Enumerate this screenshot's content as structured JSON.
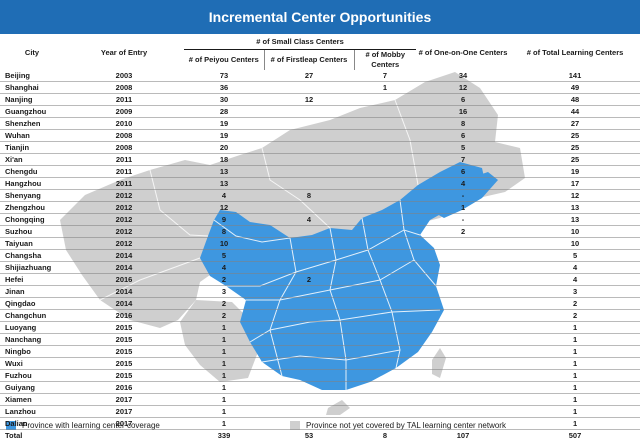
{
  "title": "Incremental Center Opportunities",
  "columns": {
    "city": "City",
    "year": "Year of Entry",
    "small_class_group": "# of Small Class Centers",
    "peiyou": "# of Peiyou Centers",
    "firstleap": "# of Firstleap Centers",
    "mobby": "# of Mobby Centers",
    "one_on_one": "# of One-on-One Centers",
    "total": "# of Total Learning Centers"
  },
  "colors": {
    "header": "#1f6db5",
    "covered": "#3e97e0",
    "not_covered": "#cfcfcf"
  },
  "chart_data": {
    "type": "table",
    "title": "Incremental Center Opportunities",
    "rows": [
      {
        "city": "Beijing",
        "year": "2003",
        "peiyou": "73",
        "firstleap": "27",
        "mobby": "7",
        "one_on_one": "34",
        "total": "141"
      },
      {
        "city": "Shanghai",
        "year": "2008",
        "peiyou": "36",
        "firstleap": "",
        "mobby": "1",
        "one_on_one": "12",
        "total": "49"
      },
      {
        "city": "Nanjing",
        "year": "2011",
        "peiyou": "30",
        "firstleap": "12",
        "mobby": "",
        "one_on_one": "6",
        "total": "48"
      },
      {
        "city": "Guangzhou",
        "year": "2009",
        "peiyou": "28",
        "firstleap": "",
        "mobby": "",
        "one_on_one": "16",
        "total": "44"
      },
      {
        "city": "Shenzhen",
        "year": "2010",
        "peiyou": "19",
        "firstleap": "",
        "mobby": "",
        "one_on_one": "8",
        "total": "27"
      },
      {
        "city": "Wuhan",
        "year": "2008",
        "peiyou": "19",
        "firstleap": "",
        "mobby": "",
        "one_on_one": "6",
        "total": "25"
      },
      {
        "city": "Tianjin",
        "year": "2008",
        "peiyou": "20",
        "firstleap": "",
        "mobby": "",
        "one_on_one": "5",
        "total": "25"
      },
      {
        "city": "Xi'an",
        "year": "2011",
        "peiyou": "18",
        "firstleap": "",
        "mobby": "",
        "one_on_one": "7",
        "total": "25"
      },
      {
        "city": "Chengdu",
        "year": "2011",
        "peiyou": "13",
        "firstleap": "",
        "mobby": "",
        "one_on_one": "6",
        "total": "19"
      },
      {
        "city": "Hangzhou",
        "year": "2011",
        "peiyou": "13",
        "firstleap": "",
        "mobby": "",
        "one_on_one": "4",
        "total": "17"
      },
      {
        "city": "Shenyang",
        "year": "2012",
        "peiyou": "4",
        "firstleap": "8",
        "mobby": "",
        "one_on_one": "-",
        "total": "12"
      },
      {
        "city": "Zhengzhou",
        "year": "2012",
        "peiyou": "12",
        "firstleap": "",
        "mobby": "",
        "one_on_one": "1",
        "total": "13"
      },
      {
        "city": "Chongqing",
        "year": "2012",
        "peiyou": "9",
        "firstleap": "4",
        "mobby": "",
        "one_on_one": "-",
        "total": "13"
      },
      {
        "city": "Suzhou",
        "year": "2012",
        "peiyou": "8",
        "firstleap": "",
        "mobby": "",
        "one_on_one": "2",
        "total": "10"
      },
      {
        "city": "Taiyuan",
        "year": "2012",
        "peiyou": "10",
        "firstleap": "",
        "mobby": "",
        "one_on_one": "",
        "total": "10"
      },
      {
        "city": "Changsha",
        "year": "2014",
        "peiyou": "5",
        "firstleap": "",
        "mobby": "",
        "one_on_one": "",
        "total": "5"
      },
      {
        "city": "Shijiazhuang",
        "year": "2014",
        "peiyou": "4",
        "firstleap": "",
        "mobby": "",
        "one_on_one": "",
        "total": "4"
      },
      {
        "city": "Hefei",
        "year": "2016",
        "peiyou": "2",
        "firstleap": "2",
        "mobby": "",
        "one_on_one": "",
        "total": "4"
      },
      {
        "city": "Jinan",
        "year": "2014",
        "peiyou": "3",
        "firstleap": "",
        "mobby": "",
        "one_on_one": "",
        "total": "3"
      },
      {
        "city": "Qingdao",
        "year": "2014",
        "peiyou": "2",
        "firstleap": "",
        "mobby": "",
        "one_on_one": "",
        "total": "2"
      },
      {
        "city": "Changchun",
        "year": "2016",
        "peiyou": "2",
        "firstleap": "",
        "mobby": "",
        "one_on_one": "",
        "total": "2"
      },
      {
        "city": "Luoyang",
        "year": "2015",
        "peiyou": "1",
        "firstleap": "",
        "mobby": "",
        "one_on_one": "",
        "total": "1"
      },
      {
        "city": "Nanchang",
        "year": "2015",
        "peiyou": "1",
        "firstleap": "",
        "mobby": "",
        "one_on_one": "",
        "total": "1"
      },
      {
        "city": "Ningbo",
        "year": "2015",
        "peiyou": "1",
        "firstleap": "",
        "mobby": "",
        "one_on_one": "",
        "total": "1"
      },
      {
        "city": "Wuxi",
        "year": "2015",
        "peiyou": "1",
        "firstleap": "",
        "mobby": "",
        "one_on_one": "",
        "total": "1"
      },
      {
        "city": "Fuzhou",
        "year": "2015",
        "peiyou": "1",
        "firstleap": "",
        "mobby": "",
        "one_on_one": "",
        "total": "1"
      },
      {
        "city": "Guiyang",
        "year": "2016",
        "peiyou": "1",
        "firstleap": "",
        "mobby": "",
        "one_on_one": "",
        "total": "1"
      },
      {
        "city": "Xiamen",
        "year": "2017",
        "peiyou": "1",
        "firstleap": "",
        "mobby": "",
        "one_on_one": "",
        "total": "1"
      },
      {
        "city": "Lanzhou",
        "year": "2017",
        "peiyou": "1",
        "firstleap": "",
        "mobby": "",
        "one_on_one": "",
        "total": "1"
      },
      {
        "city": "Dalian",
        "year": "2017",
        "peiyou": "1",
        "firstleap": "",
        "mobby": "",
        "one_on_one": "",
        "total": "1"
      }
    ],
    "total": {
      "city": "Total",
      "year": "",
      "peiyou": "339",
      "firstleap": "53",
      "mobby": "8",
      "one_on_one": "107",
      "total": "507"
    }
  },
  "legend": {
    "covered_label": "Province with learning center coverage",
    "not_covered_label": "Province not yet  covered by TAL learning center network"
  }
}
